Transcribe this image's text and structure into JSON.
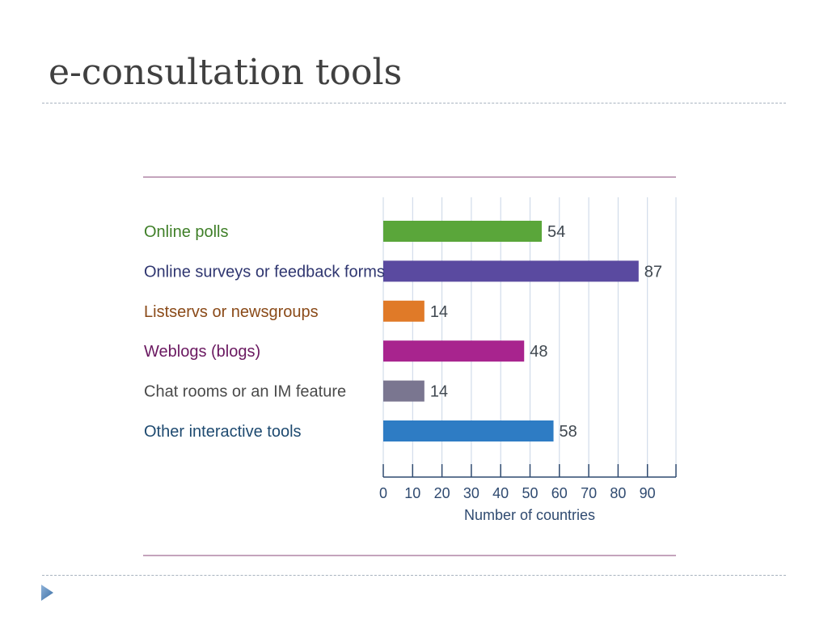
{
  "slide": {
    "title": "e-consultation tools"
  },
  "chart_data": {
    "type": "bar",
    "orientation": "horizontal",
    "categories": [
      "Online polls",
      "Online surveys or feedback forms",
      "Listservs or newsgroups",
      "Weblogs (blogs)",
      "Chat rooms or an IM feature",
      "Other interactive tools"
    ],
    "values": [
      54,
      87,
      14,
      48,
      14,
      58
    ],
    "colors": [
      "#5aa63a",
      "#5a4aa0",
      "#e07a28",
      "#a8248e",
      "#7a7690",
      "#2e7cc4"
    ],
    "label_colors": [
      "#3f7f28",
      "#2f3670",
      "#8a4a18",
      "#6a1860",
      "#4a4a4a",
      "#1e4a70"
    ],
    "xlabel": "Number of countries",
    "xlim": [
      0,
      90
    ],
    "xticks": [
      0,
      10,
      20,
      30,
      40,
      50,
      60,
      70,
      80,
      90
    ],
    "grid": true
  }
}
